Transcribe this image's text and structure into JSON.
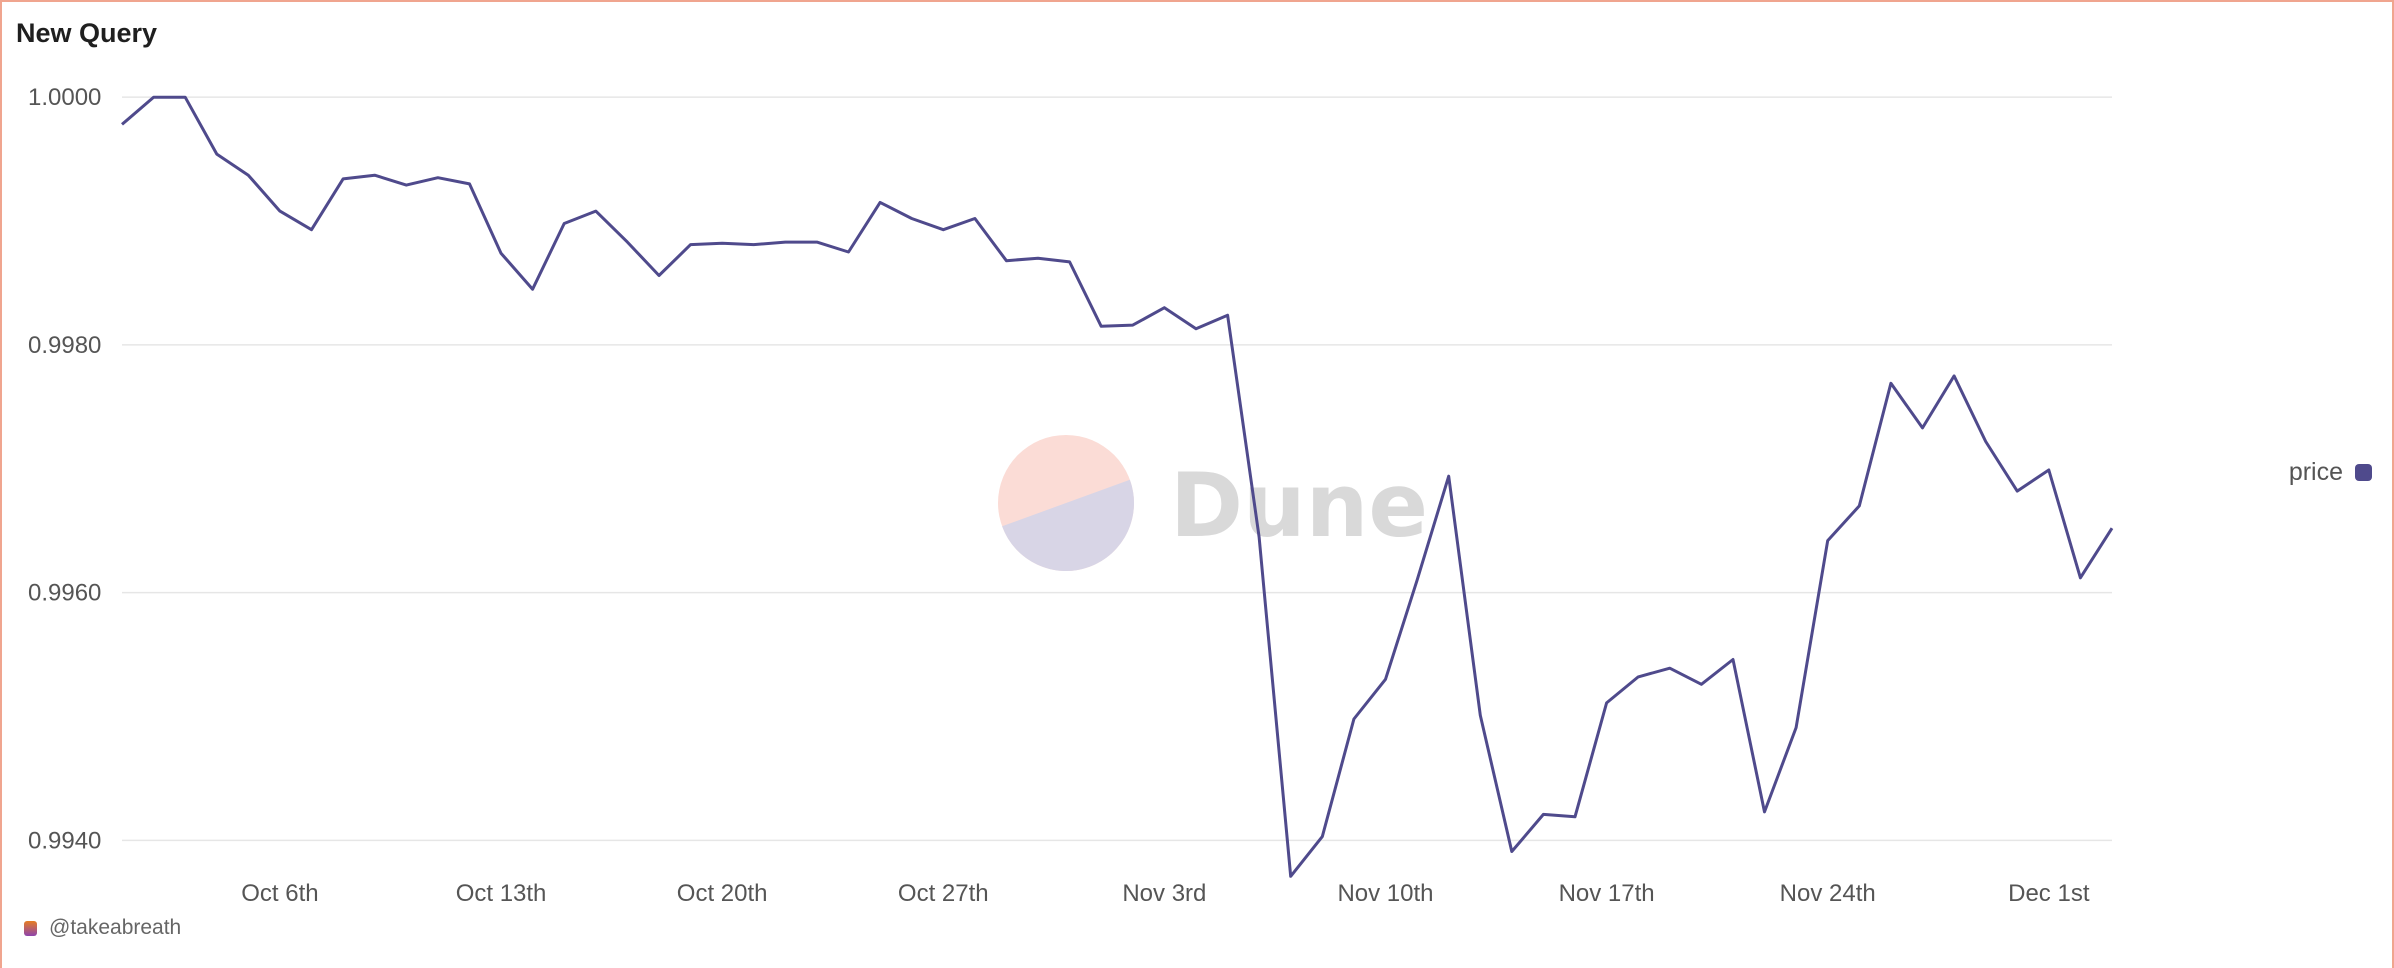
{
  "title": "New Query",
  "attribution": "@takeabreath",
  "watermark": "Dune",
  "colors": {
    "line": "#4f4a8c",
    "grid": "#e6e6e6",
    "frame": "#f0a58f",
    "watermark_top": "#fbdcd6",
    "watermark_bottom": "#d8d5e6",
    "watermark_text": "#d9d9d9"
  },
  "legend": {
    "label": "price"
  },
  "chart_data": {
    "type": "line",
    "y_ticks": [
      {
        "value": 1.0,
        "label": "1.0000"
      },
      {
        "value": 0.998,
        "label": "0.9980"
      },
      {
        "value": 0.996,
        "label": "0.9960"
      },
      {
        "value": 0.994,
        "label": "0.9940"
      }
    ],
    "x_ticks": [
      {
        "date": "2023-10-06",
        "label": "Oct 6th"
      },
      {
        "date": "2023-10-13",
        "label": "Oct 13th"
      },
      {
        "date": "2023-10-20",
        "label": "Oct 20th"
      },
      {
        "date": "2023-10-27",
        "label": "Oct 27th"
      },
      {
        "date": "2023-11-03",
        "label": "Nov 3rd"
      },
      {
        "date": "2023-11-10",
        "label": "Nov 10th"
      },
      {
        "date": "2023-11-17",
        "label": "Nov 17th"
      },
      {
        "date": "2023-11-24",
        "label": "Nov 24th"
      },
      {
        "date": "2023-12-01",
        "label": "Dec 1st"
      }
    ],
    "ylim": [
      0.99368,
      1.0003
    ],
    "xlim": [
      "2023-10-01",
      "2023-12-03"
    ],
    "grid": true,
    "legend_position": "right",
    "series": [
      {
        "name": "price",
        "points": [
          [
            "2023-10-01",
            0.99978
          ],
          [
            "2023-10-02",
            1.0
          ],
          [
            "2023-10-03",
            1.0
          ],
          [
            "2023-10-04",
            0.99954
          ],
          [
            "2023-10-05",
            0.99937
          ],
          [
            "2023-10-06",
            0.99908
          ],
          [
            "2023-10-07",
            0.99893
          ],
          [
            "2023-10-08",
            0.99934
          ],
          [
            "2023-10-09",
            0.99937
          ],
          [
            "2023-10-10",
            0.99929
          ],
          [
            "2023-10-11",
            0.99935
          ],
          [
            "2023-10-12",
            0.9993
          ],
          [
            "2023-10-13",
            0.99874
          ],
          [
            "2023-10-14",
            0.99845
          ],
          [
            "2023-10-15",
            0.99898
          ],
          [
            "2023-10-16",
            0.99908
          ],
          [
            "2023-10-17",
            0.99883
          ],
          [
            "2023-10-18",
            0.99856
          ],
          [
            "2023-10-19",
            0.99881
          ],
          [
            "2023-10-20",
            0.99882
          ],
          [
            "2023-10-21",
            0.99881
          ],
          [
            "2023-10-22",
            0.99883
          ],
          [
            "2023-10-23",
            0.99883
          ],
          [
            "2023-10-24",
            0.99875
          ],
          [
            "2023-10-25",
            0.99915
          ],
          [
            "2023-10-26",
            0.99902
          ],
          [
            "2023-10-27",
            0.99893
          ],
          [
            "2023-10-28",
            0.99902
          ],
          [
            "2023-10-29",
            0.99868
          ],
          [
            "2023-10-30",
            0.9987
          ],
          [
            "2023-10-31",
            0.99867
          ],
          [
            "2023-11-01",
            0.99815
          ],
          [
            "2023-11-02",
            0.99816
          ],
          [
            "2023-11-03",
            0.9983
          ],
          [
            "2023-11-04",
            0.99813
          ],
          [
            "2023-11-05",
            0.99824
          ],
          [
            "2023-11-06",
            0.99645
          ],
          [
            "2023-11-07",
            0.99371
          ],
          [
            "2023-11-08",
            0.99403
          ],
          [
            "2023-11-09",
            0.99498
          ],
          [
            "2023-11-10",
            0.9953
          ],
          [
            "2023-11-11",
            0.9961
          ],
          [
            "2023-11-12",
            0.99694
          ],
          [
            "2023-11-13",
            0.99501
          ],
          [
            "2023-11-14",
            0.99391
          ],
          [
            "2023-11-15",
            0.99421
          ],
          [
            "2023-11-16",
            0.99419
          ],
          [
            "2023-11-17",
            0.99511
          ],
          [
            "2023-11-18",
            0.99532
          ],
          [
            "2023-11-19",
            0.99539
          ],
          [
            "2023-11-20",
            0.99526
          ],
          [
            "2023-11-21",
            0.99546
          ],
          [
            "2023-11-22",
            0.99423
          ],
          [
            "2023-11-23",
            0.99491
          ],
          [
            "2023-11-24",
            0.99642
          ],
          [
            "2023-11-25",
            0.9967
          ],
          [
            "2023-11-26",
            0.99769
          ],
          [
            "2023-11-27",
            0.99733
          ],
          [
            "2023-11-28",
            0.99775
          ],
          [
            "2023-11-29",
            0.99722
          ],
          [
            "2023-11-30",
            0.99682
          ],
          [
            "2023-12-01",
            0.99699
          ],
          [
            "2023-12-02",
            0.99612
          ],
          [
            "2023-12-03",
            0.99652
          ]
        ]
      }
    ]
  }
}
